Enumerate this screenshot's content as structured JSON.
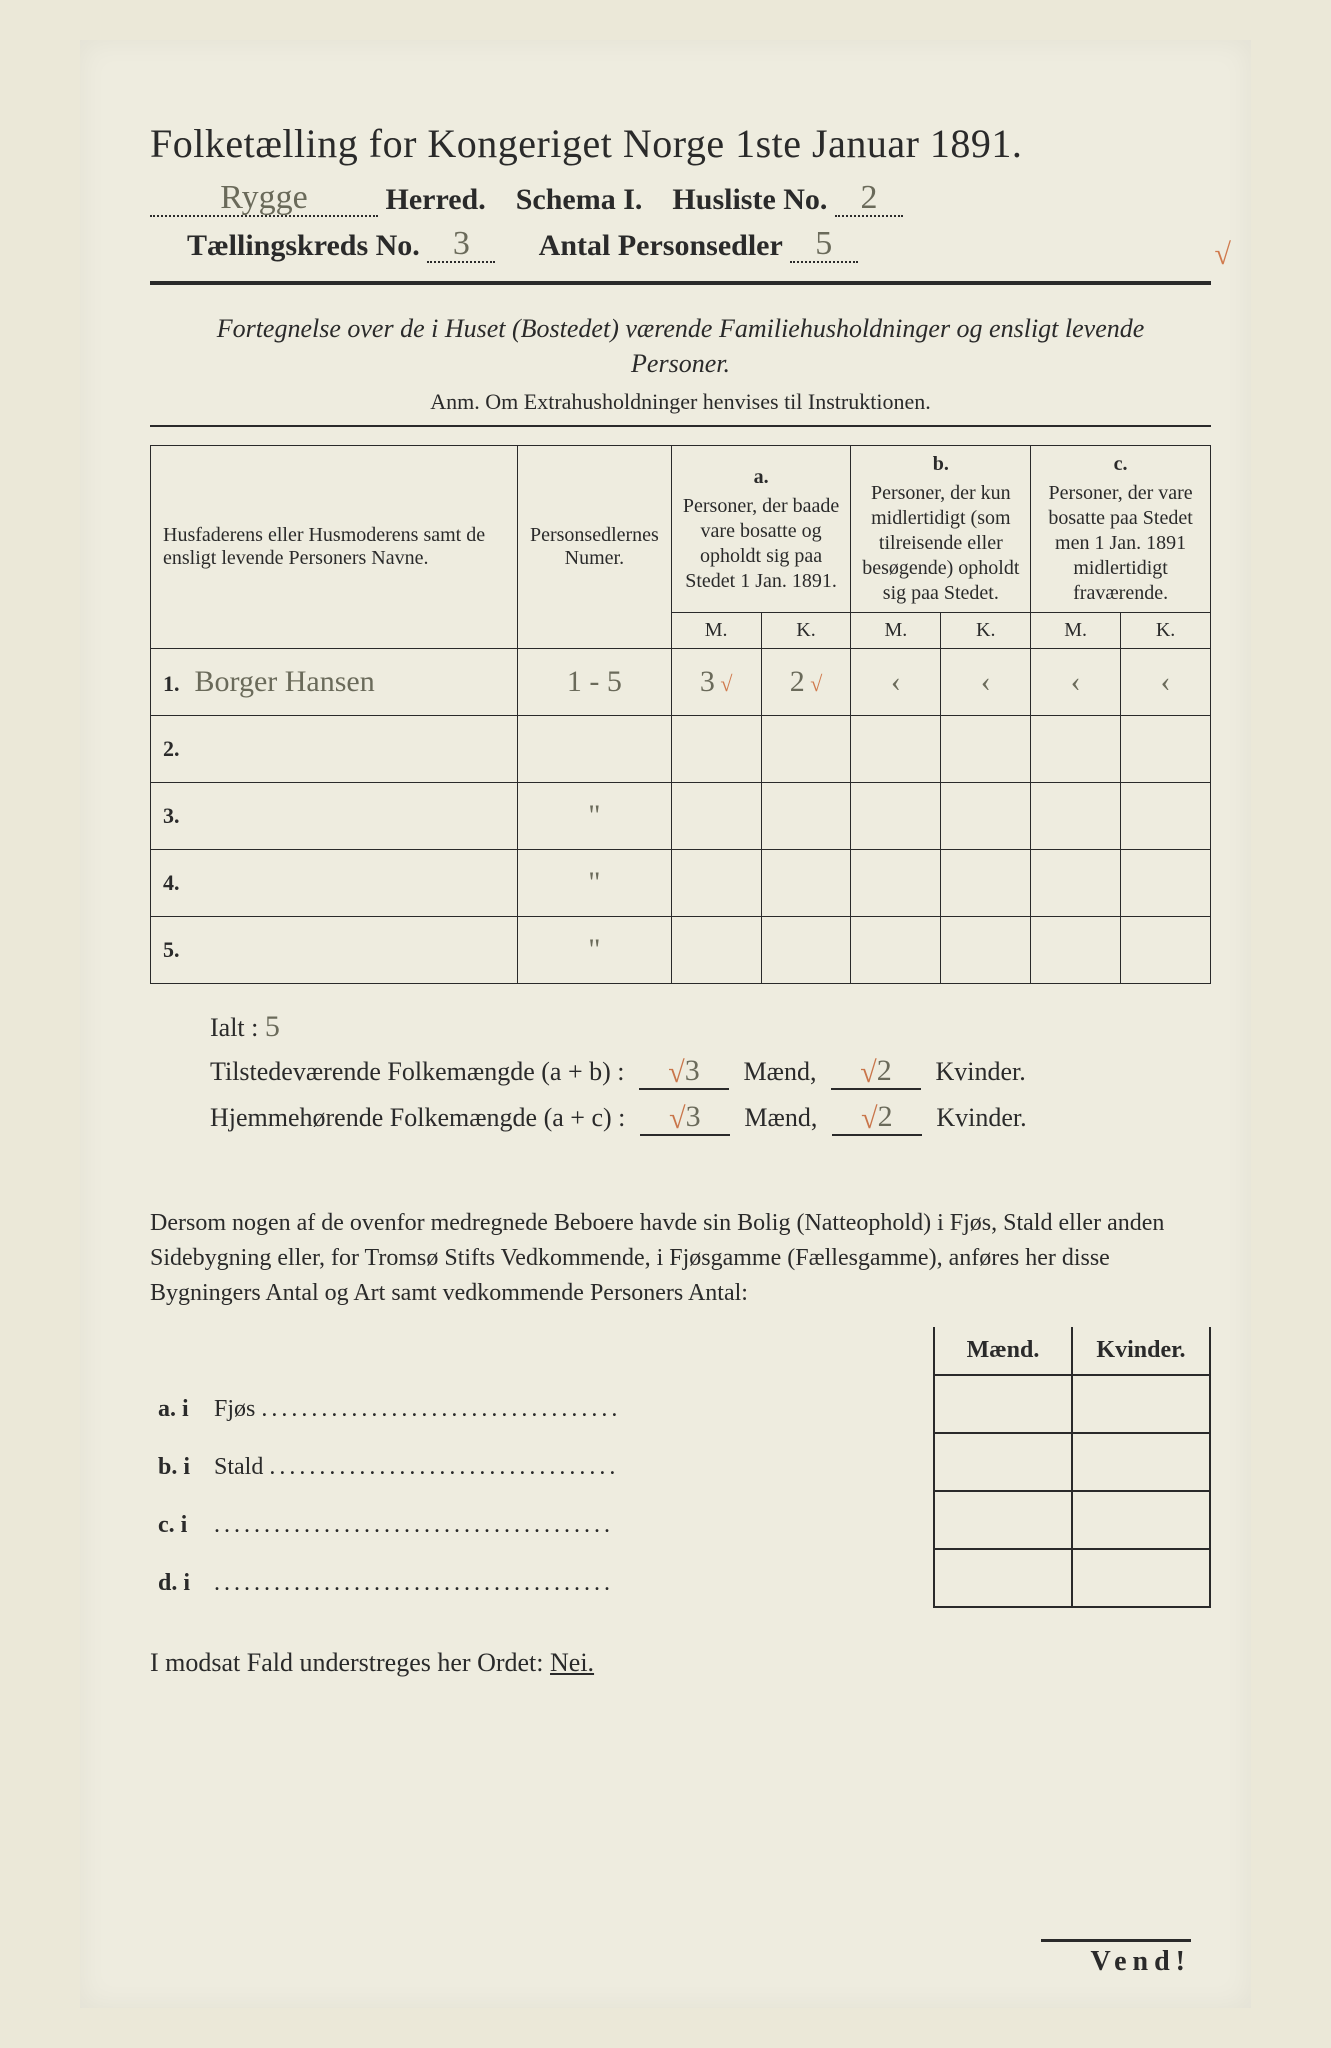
{
  "colors": {
    "paper": "#ebe8d8",
    "inner_paper": "#eeecdf",
    "ink": "#2a2a2a",
    "handwriting": "#6a6a5a",
    "red_pencil": "#d07a4d",
    "background": "#1a1a1a"
  },
  "typography": {
    "title_fontsize": 40,
    "header_fontsize": 30,
    "body_fontsize": 24,
    "table_header_fontsize": 17,
    "handwriting_fontsize": 30
  },
  "title": "Folketælling for Kongeriget Norge 1ste Januar 1891.",
  "header": {
    "herred_value": "Rygge",
    "herred_label": "Herred.",
    "schema_label": "Schema I.",
    "husliste_label": "Husliste No.",
    "husliste_value": "2",
    "kreds_label": "Tællingskreds No.",
    "kreds_value": "3",
    "personsedler_label": "Antal Personsedler",
    "personsedler_value": "5"
  },
  "fortegnelse": "Fortegnelse over de i Huset (Bostedet) værende Familiehusholdninger og ensligt levende Personer.",
  "anm": "Anm. Om Extrahusholdninger henvises til Instruktionen.",
  "table": {
    "col_name": "Husfaderens eller Husmoderens samt de ensligt levende Personers Navne.",
    "col_num": "Personsedlernes Numer.",
    "col_a_label": "a.",
    "col_a": "Personer, der baade vare bosatte og opholdt sig paa Stedet 1 Jan. 1891.",
    "col_b_label": "b.",
    "col_b": "Personer, der kun midlertidigt (som tilreisende eller besøgende) opholdt sig paa Stedet.",
    "col_c_label": "c.",
    "col_c": "Personer, der vare bosatte paa Stedet men 1 Jan. 1891 midlertidigt fraværende.",
    "mk_m": "M.",
    "mk_k": "K.",
    "rows": [
      {
        "n": "1.",
        "name": "Borger Hansen",
        "num": "1 - 5",
        "a_m": "3",
        "a_k": "2",
        "b_m": "‹",
        "b_k": "‹",
        "c_m": "‹",
        "c_k": "‹"
      },
      {
        "n": "2.",
        "name": "",
        "num": "",
        "a_m": "",
        "a_k": "",
        "b_m": "",
        "b_k": "",
        "c_m": "",
        "c_k": ""
      },
      {
        "n": "3.",
        "name": "",
        "num": "\"",
        "a_m": "",
        "a_k": "",
        "b_m": "",
        "b_k": "",
        "c_m": "",
        "c_k": ""
      },
      {
        "n": "4.",
        "name": "",
        "num": "\"",
        "a_m": "",
        "a_k": "",
        "b_m": "",
        "b_k": "",
        "c_m": "",
        "c_k": ""
      },
      {
        "n": "5.",
        "name": "",
        "num": "\"",
        "a_m": "",
        "a_k": "",
        "b_m": "",
        "b_k": "",
        "c_m": "",
        "c_k": ""
      }
    ]
  },
  "totals": {
    "ialt_label": "Ialt :",
    "ialt_value": "5",
    "line1_label": "Tilstedeværende Folkemængde (a + b) :",
    "line1_m": "3",
    "line1_k": "2",
    "line2_label": "Hjemmehørende Folkemængde (a + c) :",
    "line2_m": "3",
    "line2_k": "2",
    "maend": "Mænd,",
    "kvinder": "Kvinder."
  },
  "para": "Dersom nogen af de ovenfor medregnede Beboere havde sin Bolig (Natteophold) i Fjøs, Stald eller anden Sidebygning eller, for Tromsø Stifts Vedkommende, i Fjøsgamme (Fællesgamme), anføres her disse Bygningers Antal og Art samt vedkommende Personers Antal:",
  "side_table": {
    "maend": "Mænd.",
    "kvinder": "Kvinder.",
    "items": [
      {
        "label": "a.  i",
        "text": "Fjøs"
      },
      {
        "label": "b.  i",
        "text": "Stald"
      },
      {
        "label": "c.  i",
        "text": ""
      },
      {
        "label": "d.  i",
        "text": ""
      }
    ]
  },
  "nei_line_prefix": "I modsat Fald understreges her Ordet: ",
  "nei_word": "Nei.",
  "vend": "Vend!",
  "edge_tick": "√"
}
